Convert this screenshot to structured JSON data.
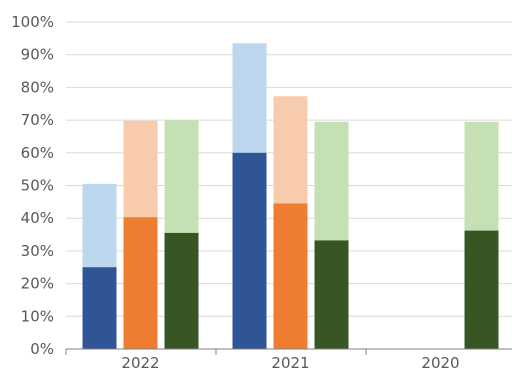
{
  "chart_data": {
    "type": "bar",
    "stacking": "overlay",
    "categories": [
      "2022",
      "2021",
      "2020"
    ],
    "yticks": [
      "0%",
      "10%",
      "20%",
      "30%",
      "40%",
      "50%",
      "60%",
      "70%",
      "80%",
      "90%",
      "100%"
    ],
    "ylim": [
      0,
      100
    ],
    "grid": true,
    "legend": "none",
    "series": [
      {
        "lower": [
          25,
          60,
          null
        ],
        "upper": [
          50.5,
          93.5,
          null
        ],
        "colors": {
          "lower": "#2f5597",
          "upper": "#bdd7ee"
        }
      },
      {
        "lower": [
          40.3,
          44.5,
          null
        ],
        "upper": [
          69.8,
          77.3,
          null
        ],
        "colors": {
          "lower": "#ed7d31",
          "upper": "#f8cbad"
        }
      },
      {
        "lower": [
          35.5,
          33.2,
          36.2
        ],
        "upper": [
          70,
          69.5,
          69.5
        ],
        "colors": {
          "lower": "#375623",
          "upper": "#c5e0b4"
        }
      }
    ]
  }
}
